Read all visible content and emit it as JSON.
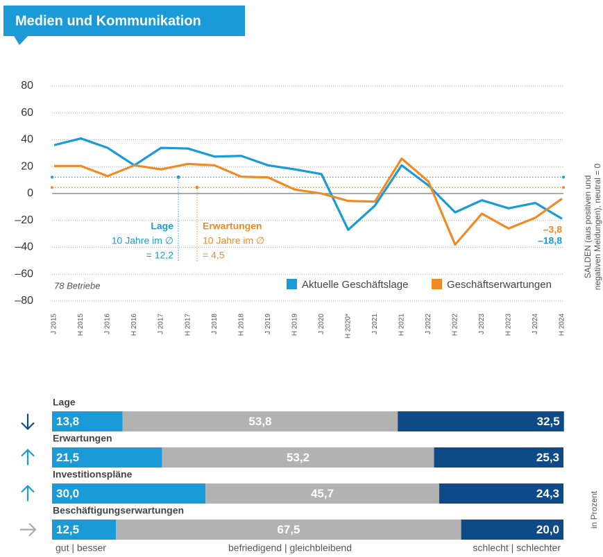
{
  "header": {
    "title": "Medien und Kommunikation"
  },
  "chart_data": [
    {
      "type": "line",
      "categories": [
        "J 2015",
        "H 2015",
        "J 2016",
        "H 2016",
        "J 2017",
        "H 2017",
        "J 2018",
        "H 2018",
        "J 2019",
        "H 2019",
        "J 2020",
        "H 2020*",
        "J 2021",
        "H 2021",
        "J 2022",
        "H 2022",
        "J 2023",
        "H 2023",
        "J 2024",
        "H 2024"
      ],
      "series": [
        {
          "name": "Aktuelle Geschäftslage",
          "color": "#1a9ad6",
          "values": [
            36,
            41,
            34,
            21,
            34,
            33.5,
            27.5,
            28,
            21,
            18,
            14.5,
            -27,
            -9,
            21,
            6,
            -14,
            -5,
            -11,
            -7,
            -18.8
          ],
          "value_labels": [
            null,
            null,
            null,
            null,
            null,
            null,
            null,
            null,
            null,
            null,
            null,
            null,
            null,
            null,
            null,
            null,
            null,
            null,
            null,
            "–18,8"
          ],
          "average": {
            "value": 12.2,
            "lines": [
              "Lage",
              "10 Jahre im ∅",
              "= 12,2"
            ]
          }
        },
        {
          "name": "Geschäftserwartungen",
          "color": "#f08a24",
          "values": [
            20.5,
            20.5,
            13,
            21,
            18,
            22,
            21,
            12.5,
            12,
            3,
            0,
            -5.5,
            -6,
            26,
            9,
            -38,
            -15,
            -26,
            -18,
            -3.8
          ],
          "value_labels": [
            null,
            null,
            null,
            null,
            null,
            null,
            null,
            null,
            null,
            null,
            null,
            null,
            null,
            null,
            null,
            null,
            null,
            null,
            null,
            "–3,8"
          ],
          "average": {
            "value": 4.5,
            "lines": [
              "Erwartungen",
              "10 Jahre im ∅",
              "= 4,5"
            ]
          }
        }
      ],
      "ylim": [
        -80,
        80
      ],
      "yticks": [
        80,
        60,
        40,
        20,
        0,
        {
          "value": -20,
          "label": "–20"
        },
        {
          "value": -40,
          "label": "–40"
        },
        {
          "value": -60,
          "label": "–60"
        },
        {
          "value": -80,
          "label": "–80"
        }
      ],
      "grid": true,
      "note": "78 Betriebe",
      "ylabel": [
        "SALDEN (aus positiven und",
        "negativen Meldungen), neutral = 0"
      ],
      "legend": "bottom-right"
    },
    {
      "type": "stacked-bar",
      "segments": [
        {
          "name": "gut | besser",
          "color": "#1a9ad6"
        },
        {
          "name": "befriedigend | gleichbleibend",
          "color": "#b2b2b2"
        },
        {
          "name": "schlecht | schlechter",
          "color": "#0d4a87"
        }
      ],
      "rows": [
        {
          "label": "Lage",
          "trend": "down",
          "values": [
            13.8,
            53.8,
            32.5
          ],
          "value_labels": [
            "13,8",
            "53,8",
            "32,5"
          ]
        },
        {
          "label": "Erwartungen",
          "trend": "up",
          "values": [
            21.5,
            53.2,
            25.3
          ],
          "value_labels": [
            "21,5",
            "53,2",
            "25,3"
          ]
        },
        {
          "label": "Investitionspläne",
          "trend": "up",
          "values": [
            30.0,
            45.7,
            24.3
          ],
          "value_labels": [
            "30,0",
            "45,7",
            "24,3"
          ]
        },
        {
          "label": "Beschäftigungserwartungen",
          "trend": "flat",
          "values": [
            12.5,
            67.5,
            20.0
          ],
          "value_labels": [
            "12,5",
            "67,5",
            "20,0"
          ]
        }
      ],
      "xlim": [
        0,
        100
      ],
      "unit_label": "in Prozent"
    }
  ]
}
